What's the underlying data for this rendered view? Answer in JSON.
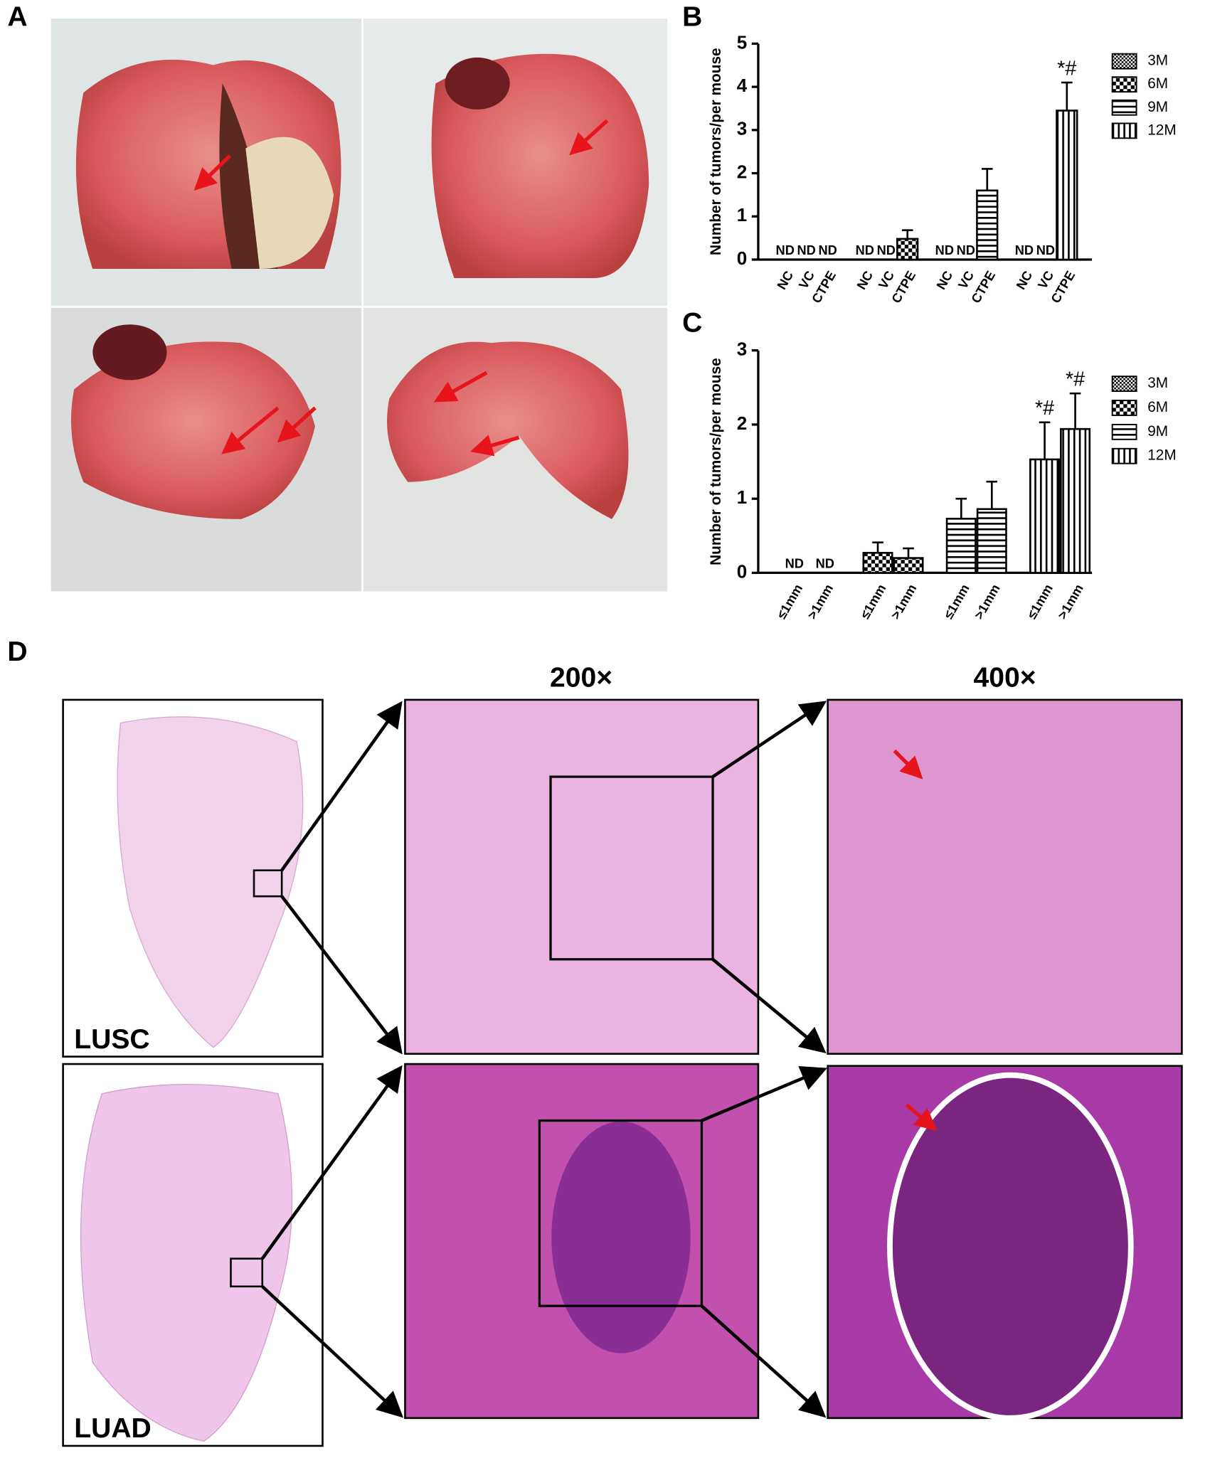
{
  "panels": {
    "a": "A",
    "b": "B",
    "c": "C",
    "d": "D"
  },
  "magnifications": [
    "200×",
    "400×"
  ],
  "samples": [
    "LUSC",
    "LUAD"
  ],
  "chart_data": [
    {
      "type": "bar",
      "y_label": "Number of tumors/per mouse",
      "categories": [
        "NC",
        "VC",
        "CTPE"
      ],
      "ylim": [
        0,
        5
      ],
      "yticks": [
        0,
        1,
        2,
        3,
        4,
        5
      ],
      "series": [
        {
          "name": "3M",
          "pattern": "fine-check",
          "values": [
            null,
            null,
            null
          ],
          "value_labels": [
            "ND",
            "ND",
            "ND"
          ],
          "errors": [
            null,
            null,
            null
          ],
          "annotations": [
            null,
            null,
            null
          ]
        },
        {
          "name": "6M",
          "pattern": "check",
          "values": [
            null,
            null,
            0.48
          ],
          "value_labels": [
            "ND",
            "ND",
            null
          ],
          "errors": [
            null,
            null,
            0.2
          ],
          "annotations": [
            null,
            null,
            null
          ]
        },
        {
          "name": "9M",
          "pattern": "horizontal",
          "values": [
            null,
            null,
            1.6
          ],
          "value_labels": [
            "ND",
            "ND",
            null
          ],
          "errors": [
            null,
            null,
            0.5
          ],
          "annotations": [
            null,
            null,
            null
          ]
        },
        {
          "name": "12M",
          "pattern": "vertical",
          "values": [
            null,
            null,
            3.45
          ],
          "value_labels": [
            "ND",
            "ND",
            null
          ],
          "errors": [
            null,
            null,
            0.65
          ],
          "annotations": [
            null,
            null,
            "*#"
          ]
        }
      ]
    },
    {
      "type": "bar",
      "y_label": "Number of tumors/per mouse",
      "categories": [
        "≤1mm",
        ">1mm"
      ],
      "ylim": [
        0,
        3
      ],
      "yticks": [
        0,
        1,
        2,
        3
      ],
      "series": [
        {
          "name": "3M",
          "pattern": "fine-check",
          "values": [
            null,
            null
          ],
          "value_labels": [
            "ND",
            "ND"
          ],
          "errors": [
            null,
            null
          ],
          "annotations": [
            null,
            null
          ]
        },
        {
          "name": "6M",
          "pattern": "check",
          "values": [
            0.27,
            0.2
          ],
          "value_labels": [
            null,
            null
          ],
          "errors": [
            0.14,
            0.13
          ],
          "annotations": [
            null,
            null
          ]
        },
        {
          "name": "9M",
          "pattern": "horizontal",
          "values": [
            0.73,
            0.86
          ],
          "value_labels": [
            null,
            null
          ],
          "errors": [
            0.27,
            0.37
          ],
          "annotations": [
            null,
            null
          ]
        },
        {
          "name": "12M",
          "pattern": "vertical",
          "values": [
            1.53,
            1.94
          ],
          "value_labels": [
            null,
            null
          ],
          "errors": [
            0.5,
            0.48
          ],
          "annotations": [
            "*#",
            "*#"
          ]
        }
      ]
    }
  ]
}
